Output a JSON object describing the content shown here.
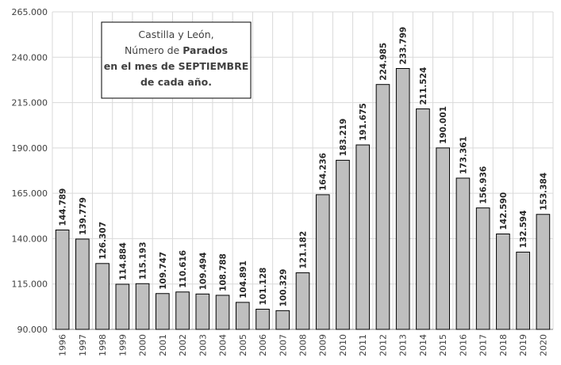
{
  "chart_data": {
    "type": "bar",
    "title": [
      "Castilla y León,",
      "Número de",
      "Parados",
      "en el mes de SEPTIEMBRE",
      "de cada año."
    ],
    "categories": [
      "1996",
      "1997",
      "1998",
      "1999",
      "2000",
      "2001",
      "2002",
      "2003",
      "2004",
      "2005",
      "2006",
      "2007",
      "2008",
      "2009",
      "2010",
      "2011",
      "2012",
      "2013",
      "2014",
      "2015",
      "2016",
      "2017",
      "2018",
      "2019",
      "2020"
    ],
    "values": [
      144789,
      139779,
      126307,
      114884,
      115193,
      109747,
      110616,
      109494,
      108788,
      104891,
      101128,
      100329,
      121182,
      164236,
      183219,
      191675,
      224985,
      233799,
      211524,
      190001,
      173361,
      156936,
      142590,
      132594,
      153384
    ],
    "value_labels": [
      "144.789",
      "139.779",
      "126.307",
      "114.884",
      "115.193",
      "109.747",
      "110.616",
      "109.494",
      "108.788",
      "104.891",
      "101.128",
      "100.329",
      "121.182",
      "164.236",
      "183.219",
      "191.675",
      "224.985",
      "233.799",
      "211.524",
      "190.001",
      "173.361",
      "156.936",
      "142.590",
      "132.594",
      "153.384"
    ],
    "color": "#bfbfbf",
    "ylim": [
      90000,
      265000
    ],
    "yticks": [
      {
        "value": 90000,
        "label": "90.000"
      },
      {
        "value": 115000,
        "label": "115.000"
      },
      {
        "value": 140000,
        "label": "140.000"
      },
      {
        "value": 165000,
        "label": "165.000"
      },
      {
        "value": 190000,
        "label": "190.000"
      },
      {
        "value": 215000,
        "label": "215.000"
      },
      {
        "value": 240000,
        "label": "240.000"
      },
      {
        "value": 265000,
        "label": "265.000"
      }
    ],
    "grid": true
  }
}
